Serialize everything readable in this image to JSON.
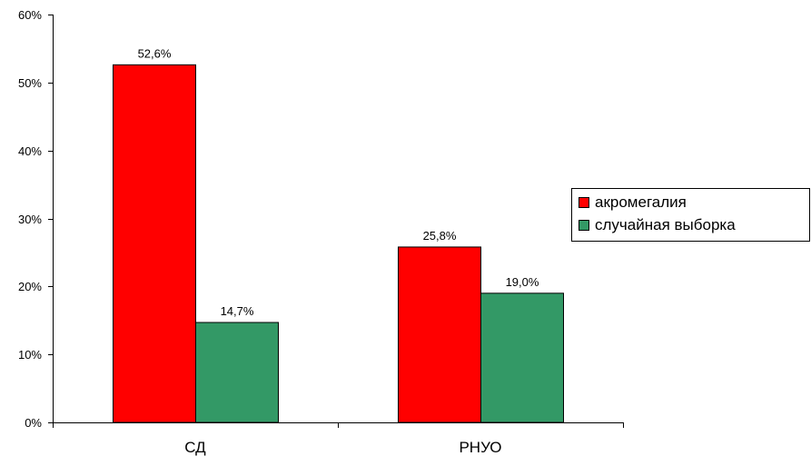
{
  "chart_data": {
    "type": "bar",
    "title": "",
    "xlabel": "",
    "ylabel": "",
    "categories": [
      "СД",
      "РНУО"
    ],
    "series": [
      {
        "name": "акромегалия",
        "color": "#ff0000",
        "values": [
          52.6,
          25.8
        ],
        "labels": [
          "52,6%",
          "25,8%"
        ]
      },
      {
        "name": "случайная выборка",
        "color": "#339966",
        "values": [
          14.7,
          19.0
        ],
        "labels": [
          "14,7%",
          "19,0%"
        ]
      }
    ],
    "ylim": [
      0,
      60
    ],
    "yticks": [
      0,
      10,
      20,
      30,
      40,
      50,
      60
    ],
    "ytick_labels": [
      "0%",
      "10%",
      "20%",
      "30%",
      "40%",
      "50%",
      "60%"
    ],
    "grid": false,
    "legend_position": "right"
  }
}
